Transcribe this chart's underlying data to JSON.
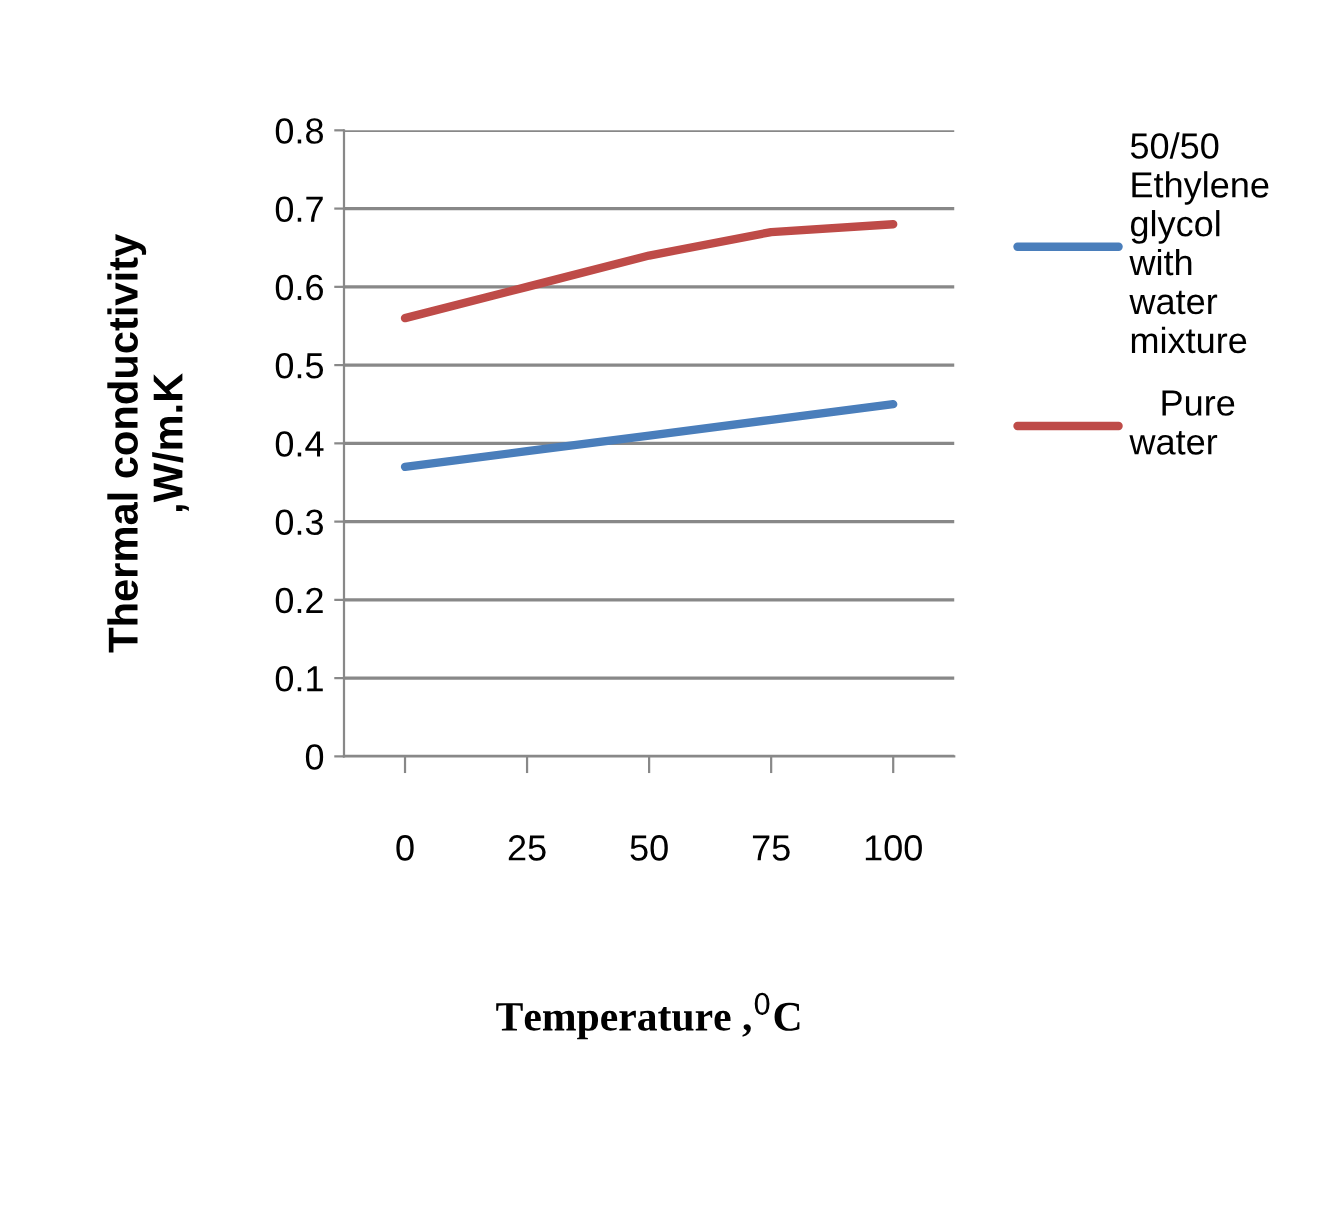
{
  "chart_data": {
    "type": "line",
    "xlabel": "Temperature ,$^{0}$C",
    "ylabel": "Thermal conductivity\n,W/m.K",
    "categories": [
      "0",
      "25",
      "50",
      "75",
      "100"
    ],
    "series": [
      {
        "name": "50/50\nEthylene\nglycol\nwith\nwater\nmixture",
        "color": "#4a7ebb",
        "values": [
          0.37,
          0.39,
          0.41,
          0.43,
          0.45
        ]
      },
      {
        "name": "   Pure\nwater",
        "color": "#be4b48",
        "values": [
          0.56,
          0.6,
          0.64,
          0.67,
          0.68
        ]
      }
    ],
    "ylim": [
      0,
      0.8
    ],
    "yticks": [
      0,
      0.1,
      0.2,
      0.3,
      0.4,
      0.5,
      0.6,
      0.7,
      0.8
    ],
    "grid": "y",
    "legend": "right",
    "marker": "none",
    "line_style": "solid"
  }
}
